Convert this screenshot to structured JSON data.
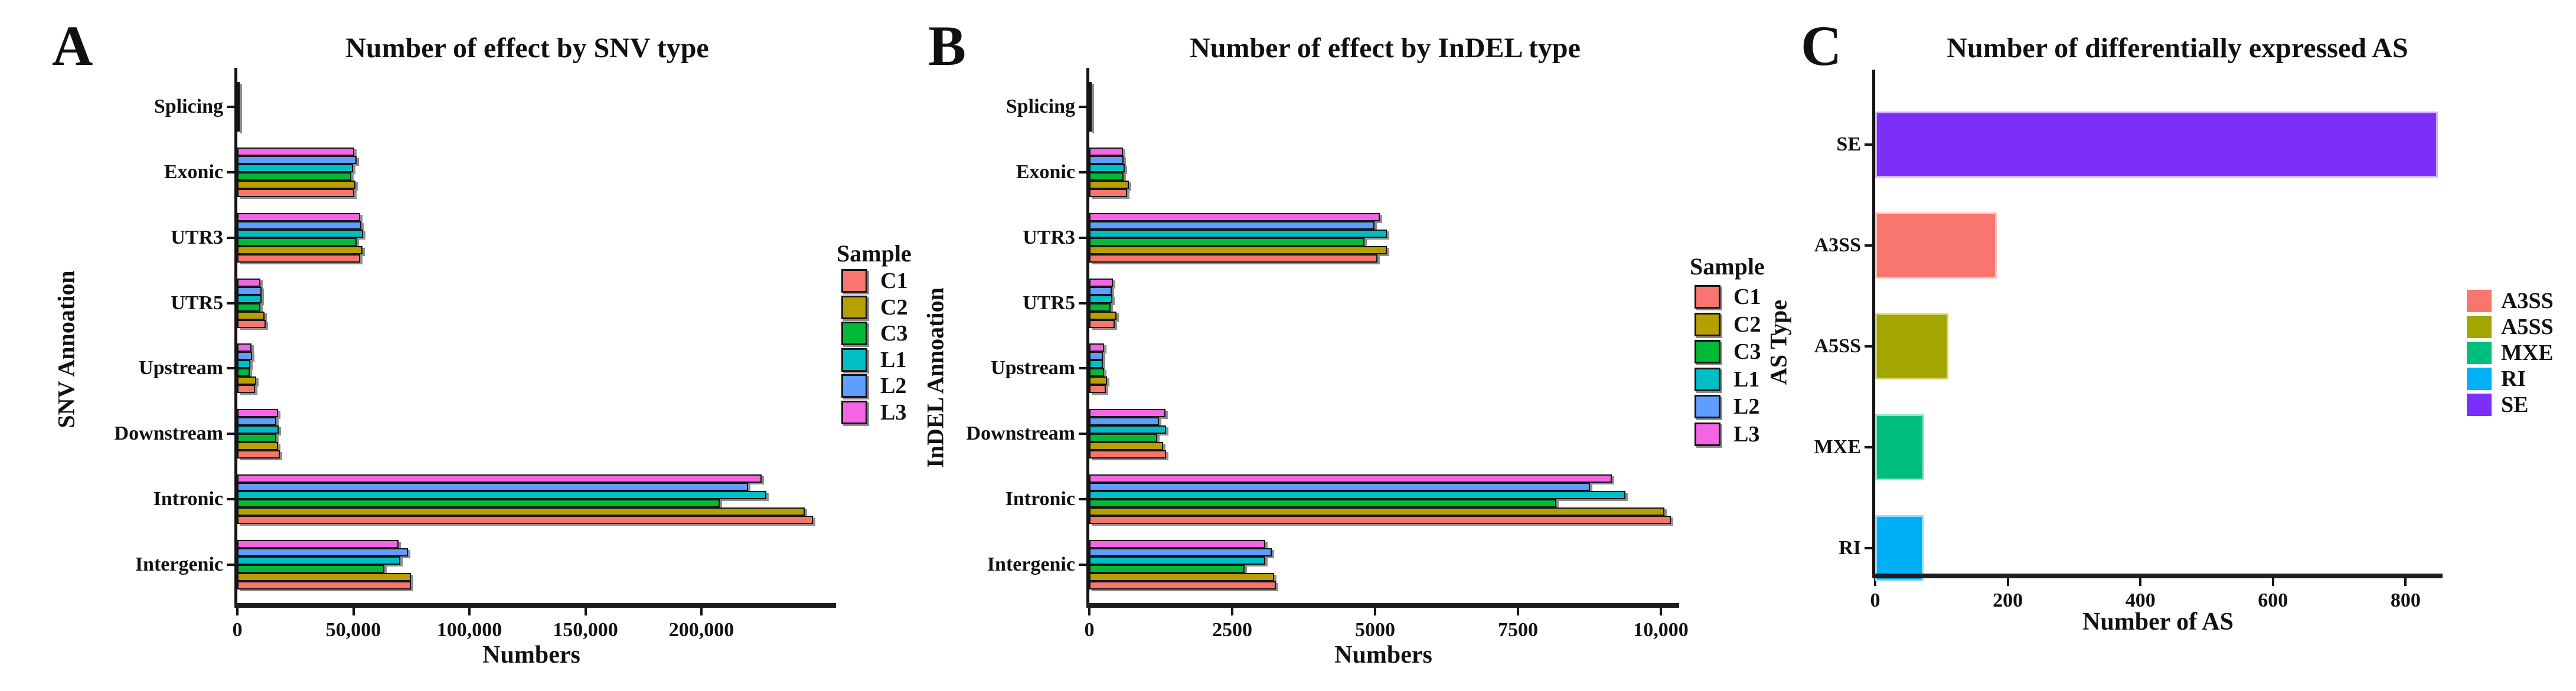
{
  "figure": {
    "background": "#ffffff"
  },
  "chart_data": [
    {
      "panel": "A",
      "type": "bar",
      "orientation": "horizontal",
      "title": "Number of  effect by SNV type",
      "xlabel": "Numbers",
      "ylabel": "SNV Annoation",
      "categories": [
        "Splicing",
        "Exonic",
        "UTR3",
        "UTR5",
        "Upstream",
        "Downstream",
        "Intronic",
        "Intergenic"
      ],
      "xlim": [
        0,
        255000
      ],
      "grid": false,
      "xticks": [
        {
          "v": 0,
          "label": "0"
        },
        {
          "v": 50000,
          "label": "50,000"
        },
        {
          "v": 100000,
          "label": "100,000"
        },
        {
          "v": 150000,
          "label": "150,000"
        },
        {
          "v": 200000,
          "label": "200,000"
        }
      ],
      "bar_order_top_to_bottom": [
        "L3",
        "L2",
        "L1",
        "C3",
        "C2",
        "C1"
      ],
      "series": [
        {
          "name": "C1",
          "color": "#F8766D",
          "values": [
            300,
            50500,
            52800,
            12300,
            7600,
            18400,
            248000,
            74800
          ]
        },
        {
          "name": "C2",
          "color": "#B79F00",
          "values": [
            320,
            51000,
            53900,
            11800,
            8100,
            17600,
            244500,
            74800
          ]
        },
        {
          "name": "C3",
          "color": "#00BA38",
          "values": [
            280,
            49000,
            51300,
            9800,
            5400,
            16700,
            208000,
            63400
          ]
        },
        {
          "name": "L1",
          "color": "#00BFC4",
          "values": [
            280,
            49800,
            54300,
            10500,
            5600,
            17900,
            228000,
            70200
          ]
        },
        {
          "name": "L2",
          "color": "#619CFF",
          "values": [
            290,
            51500,
            53500,
            10500,
            6400,
            16700,
            220000,
            73500
          ]
        },
        {
          "name": "L3",
          "color": "#F564E3",
          "values": [
            300,
            50500,
            52800,
            9800,
            6100,
            17600,
            226000,
            69500
          ]
        }
      ],
      "legend": {
        "title": "Sample",
        "position": "right",
        "entries": [
          {
            "label": "C1",
            "color": "#F8766D"
          },
          {
            "label": "C2",
            "color": "#B79F00"
          },
          {
            "label": "C3",
            "color": "#00BA38"
          },
          {
            "label": "L1",
            "color": "#00BFC4"
          },
          {
            "label": "L2",
            "color": "#619CFF"
          },
          {
            "label": "L3",
            "color": "#F564E3"
          }
        ]
      }
    },
    {
      "panel": "B",
      "type": "bar",
      "orientation": "horizontal",
      "title": "Number of  effect by InDEL type",
      "xlabel": "Numbers",
      "ylabel": "InDEL Annoation",
      "categories": [
        "Splicing",
        "Exonic",
        "UTR3",
        "UTR5",
        "Upstream",
        "Downstream",
        "Intronic",
        "Intergenic"
      ],
      "xlim": [
        0,
        10400
      ],
      "grid": false,
      "xticks": [
        {
          "v": 0,
          "label": "0"
        },
        {
          "v": 2500,
          "label": "2500"
        },
        {
          "v": 5000,
          "label": "5000"
        },
        {
          "v": 7500,
          "label": "7500"
        },
        {
          "v": 10000,
          "label": "10,000"
        }
      ],
      "bar_order_top_to_bottom": [
        "L3",
        "L2",
        "L1",
        "C3",
        "C2",
        "C1"
      ],
      "series": [
        {
          "name": "C1",
          "color": "#F8766D",
          "values": [
            40,
            660,
            5040,
            445,
            290,
            1340,
            10180,
            3260
          ]
        },
        {
          "name": "C2",
          "color": "#B79F00",
          "values": [
            45,
            690,
            5210,
            475,
            310,
            1290,
            10060,
            3230
          ]
        },
        {
          "name": "C3",
          "color": "#00BA38",
          "values": [
            35,
            600,
            4810,
            370,
            260,
            1190,
            8170,
            2720
          ]
        },
        {
          "name": "L1",
          "color": "#00BFC4",
          "values": [
            40,
            620,
            5210,
            400,
            240,
            1340,
            9380,
            3080
          ]
        },
        {
          "name": "L2",
          "color": "#619CFF",
          "values": [
            40,
            600,
            4990,
            390,
            240,
            1220,
            8760,
            3190
          ]
        },
        {
          "name": "L3",
          "color": "#F564E3",
          "values": [
            40,
            590,
            5080,
            410,
            260,
            1330,
            9140,
            3080
          ]
        }
      ],
      "legend": {
        "title": "Sample",
        "position": "right",
        "entries": [
          {
            "label": "C1",
            "color": "#F8766D"
          },
          {
            "label": "C2",
            "color": "#B79F00"
          },
          {
            "label": "C3",
            "color": "#00BA38"
          },
          {
            "label": "L1",
            "color": "#00BFC4"
          },
          {
            "label": "L2",
            "color": "#619CFF"
          },
          {
            "label": "L3",
            "color": "#F564E3"
          }
        ]
      }
    },
    {
      "panel": "C",
      "type": "bar",
      "orientation": "horizontal",
      "title": "Number of  differentially expressed AS",
      "xlabel": "Number of AS",
      "ylabel": "AS Type",
      "categories": [
        "SE",
        "A3SS",
        "A5SS",
        "MXE",
        "RI"
      ],
      "xlim": [
        0,
        860
      ],
      "grid": false,
      "xticks": [
        {
          "v": 0,
          "label": "0"
        },
        {
          "v": 200,
          "label": "200"
        },
        {
          "v": 400,
          "label": "400"
        },
        {
          "v": 600,
          "label": "600"
        },
        {
          "v": 800,
          "label": "800"
        }
      ],
      "bars": [
        {
          "category": "SE",
          "value": 849,
          "color": "#7B2FF9",
          "edge": "#D0B2F8"
        },
        {
          "category": "A3SS",
          "value": 183,
          "color": "#F8766D",
          "edge": "#FBC4BE"
        },
        {
          "category": "A5SS",
          "value": 110,
          "color": "#A3A500",
          "edge": "#D4D36B"
        },
        {
          "category": "MXE",
          "value": 74,
          "color": "#00BF7D",
          "edge": "#8FE7C5"
        },
        {
          "category": "RI",
          "value": 73,
          "color": "#00B0F6",
          "edge": "#93DCFA"
        }
      ],
      "legend": {
        "title": "",
        "position": "right",
        "entries": [
          {
            "label": "A3SS",
            "color": "#F8766D"
          },
          {
            "label": "A5SS",
            "color": "#A3A500"
          },
          {
            "label": "MXE",
            "color": "#00BF7D"
          },
          {
            "label": "RI",
            "color": "#00B0F6"
          },
          {
            "label": "SE",
            "color": "#7B2FF9"
          }
        ]
      }
    }
  ]
}
